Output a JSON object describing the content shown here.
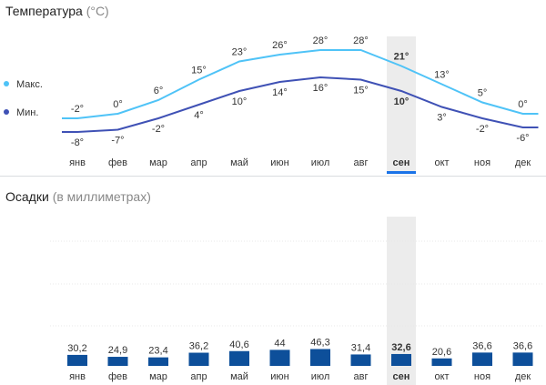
{
  "temperature": {
    "title": "Температура",
    "unit": "(°C)"
  },
  "precipitation": {
    "title": "Осадки",
    "unit": "(в миллиметрах)"
  },
  "legend": {
    "max_label": "Макс.",
    "min_label": "Мин."
  },
  "colors": {
    "max_line": "#4fc3f7",
    "min_line": "#3f51b5",
    "bars": "#0d4f9a",
    "highlight_band": "#ececec",
    "selected_tab": "#1a73e8"
  },
  "selected_month_index": 8,
  "chart_data": [
    {
      "type": "line",
      "categories": [
        "янв",
        "фев",
        "мар",
        "апр",
        "май",
        "июн",
        "июл",
        "авг",
        "сен",
        "окт",
        "ноя",
        "дек"
      ],
      "series": [
        {
          "name": "Макс.",
          "values": [
            -2,
            0,
            6,
            15,
            23,
            26,
            28,
            28,
            21,
            13,
            5,
            0
          ],
          "labels": [
            "-2°",
            "0°",
            "6°",
            "15°",
            "23°",
            "26°",
            "28°",
            "28°",
            "21°",
            "13°",
            "5°",
            "0°"
          ]
        },
        {
          "name": "Мин.",
          "values": [
            -8,
            -7,
            -2,
            4,
            10,
            14,
            16,
            15,
            10,
            3,
            -2,
            -6
          ],
          "labels": [
            "-8°",
            "-7°",
            "-2°",
            "4°",
            "10°",
            "14°",
            "16°",
            "15°",
            "10°",
            "3°",
            "-2°",
            "-6°"
          ]
        }
      ]
    },
    {
      "type": "bar",
      "categories": [
        "янв",
        "фев",
        "мар",
        "апр",
        "май",
        "июн",
        "июл",
        "авг",
        "сен",
        "окт",
        "ноя",
        "дек"
      ],
      "values": [
        30.2,
        24.9,
        23.4,
        36.2,
        40.6,
        44,
        46.3,
        31.4,
        32.6,
        20.6,
        36.6,
        36.6
      ],
      "labels": [
        "30,2",
        "24,9",
        "23,4",
        "36,2",
        "40,6",
        "44",
        "46,3",
        "31,4",
        "32,6",
        "20,6",
        "36,6",
        "36,6"
      ],
      "grid": true
    }
  ]
}
